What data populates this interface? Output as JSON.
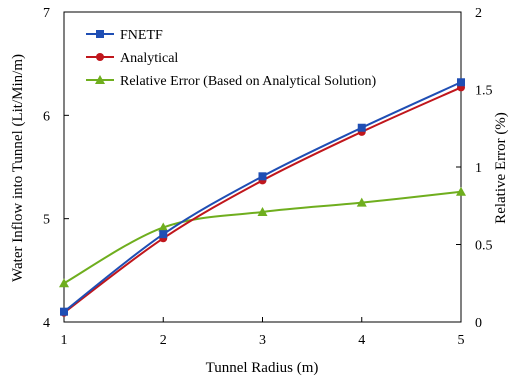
{
  "chart_data": {
    "type": "line",
    "title": "",
    "xlabel": "Tunnel Radius (m)",
    "ylabel_left": "Water Inflow into Tunnel  (Lit/Min/m)",
    "ylabel_right": "Relative Error (%)",
    "xlim": [
      1,
      5
    ],
    "ylim_left": [
      4,
      7
    ],
    "ylim_right": [
      0,
      2
    ],
    "x_ticks": [
      1,
      2,
      3,
      4,
      5
    ],
    "y_left_ticks": [
      4,
      5,
      6,
      7
    ],
    "y_right_ticks": [
      "0",
      "0.5",
      "1",
      "1.5",
      "2"
    ],
    "grid": false,
    "legend_position": "top-left",
    "series": [
      {
        "name": "FNETF",
        "axis": "left",
        "color": "#1f4eb4",
        "marker": "square",
        "x": [
          1,
          2,
          3,
          4,
          5
        ],
        "y": [
          4.1,
          4.85,
          5.41,
          5.88,
          6.32
        ]
      },
      {
        "name": "Analytical",
        "axis": "left",
        "color": "#c0161c",
        "marker": "circle",
        "x": [
          1,
          2,
          3,
          4,
          5
        ],
        "y": [
          4.09,
          4.81,
          5.37,
          5.84,
          6.27
        ]
      },
      {
        "name": "Relative Error (Based on Analytical Solution)",
        "axis": "right",
        "color": "#6fae1e",
        "marker": "triangle",
        "x": [
          1,
          2,
          3,
          4,
          5
        ],
        "y": [
          0.25,
          0.61,
          0.71,
          0.77,
          0.84
        ]
      }
    ]
  }
}
